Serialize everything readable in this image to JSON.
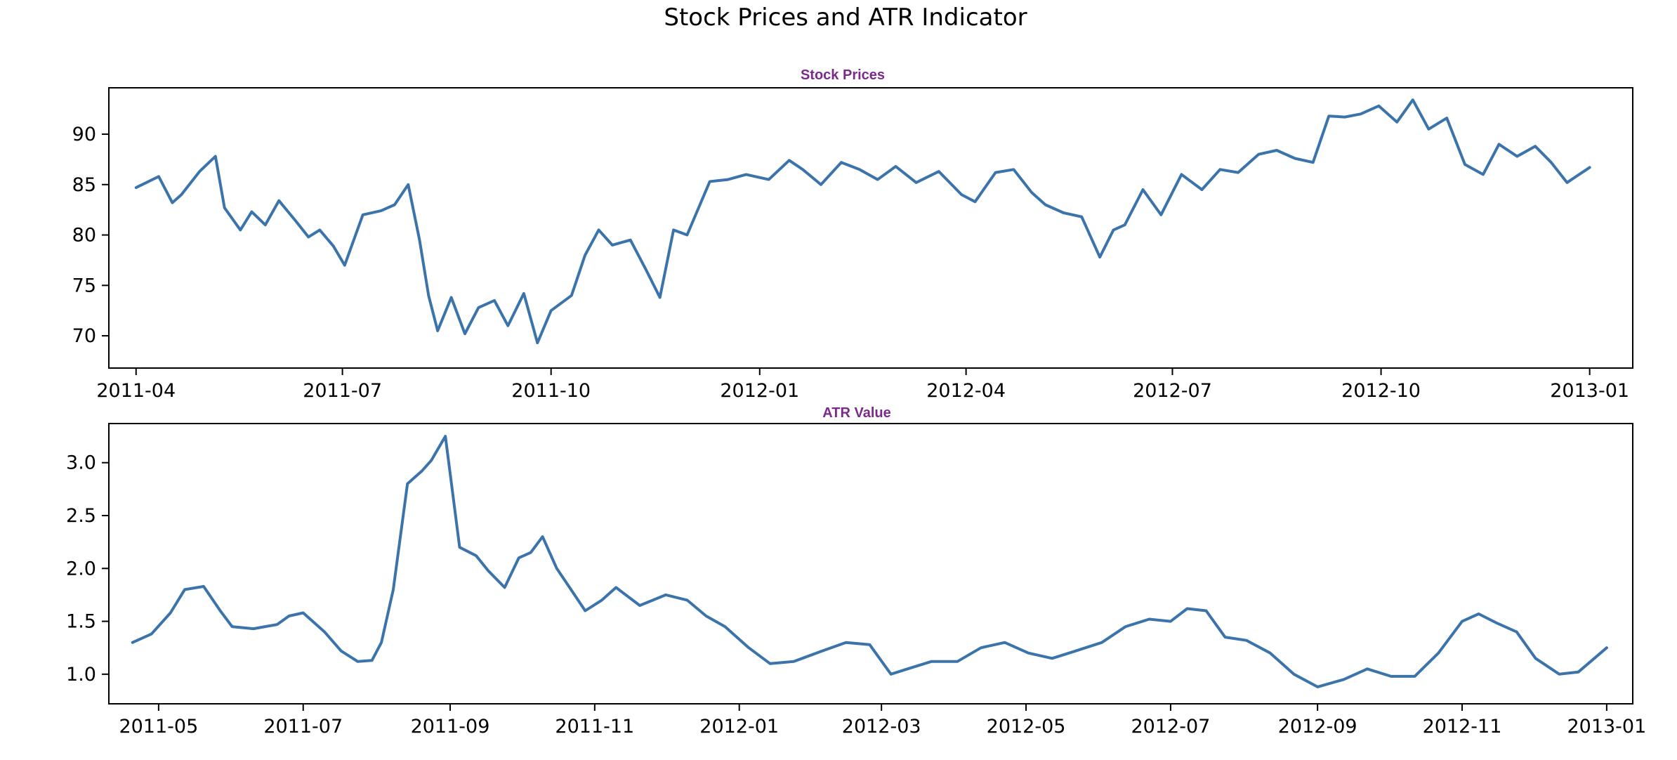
{
  "title": "Stock Prices and ATR Indicator",
  "colors": {
    "line": "#3b73ab",
    "subtitle": "#7b2a8c"
  },
  "chart_data": [
    {
      "type": "line",
      "title": "Stock Prices",
      "xlabel": "",
      "ylabel": "",
      "grid": false,
      "xlim": [
        "2011-03-20",
        "2013-01-20"
      ],
      "ylim": [
        66.8,
        94.6
      ],
      "xticks": [
        "2011-04",
        "2011-07",
        "2011-10",
        "2012-01",
        "2012-04",
        "2012-07",
        "2012-10",
        "2013-01"
      ],
      "yticks": [
        70,
        75,
        80,
        85,
        90
      ],
      "series": [
        {
          "x": [
            "2011-04-01",
            "2011-04-11",
            "2011-04-17",
            "2011-04-21",
            "2011-04-29",
            "2011-05-06",
            "2011-05-10",
            "2011-05-17",
            "2011-05-22",
            "2011-05-28",
            "2011-06-03",
            "2011-06-10",
            "2011-06-16",
            "2011-06-21",
            "2011-06-27",
            "2011-07-02",
            "2011-07-10",
            "2011-07-18",
            "2011-07-24",
            "2011-07-30",
            "2011-08-04",
            "2011-08-08",
            "2011-08-12",
            "2011-08-18",
            "2011-08-24",
            "2011-08-30",
            "2011-09-06",
            "2011-09-12",
            "2011-09-19",
            "2011-09-25",
            "2011-10-01",
            "2011-10-10",
            "2011-10-16",
            "2011-10-22",
            "2011-10-28",
            "2011-11-05",
            "2011-11-12",
            "2011-11-18",
            "2011-11-24",
            "2011-11-30",
            "2011-12-10",
            "2011-12-18",
            "2011-12-26",
            "2012-01-05",
            "2012-01-14",
            "2012-01-20",
            "2012-01-28",
            "2012-02-06",
            "2012-02-14",
            "2012-02-22",
            "2012-03-01",
            "2012-03-10",
            "2012-03-20",
            "2012-03-30",
            "2012-04-05",
            "2012-04-14",
            "2012-04-22",
            "2012-04-30",
            "2012-05-06",
            "2012-05-14",
            "2012-05-22",
            "2012-05-30",
            "2012-06-05",
            "2012-06-10",
            "2012-06-18",
            "2012-06-26",
            "2012-07-05",
            "2012-07-14",
            "2012-07-22",
            "2012-07-30",
            "2012-08-08",
            "2012-08-16",
            "2012-08-24",
            "2012-09-01",
            "2012-09-08",
            "2012-09-15",
            "2012-09-22",
            "2012-09-30",
            "2012-10-08",
            "2012-10-15",
            "2012-10-22",
            "2012-10-30",
            "2012-11-07",
            "2012-11-15",
            "2012-11-22",
            "2012-11-30",
            "2012-12-08",
            "2012-12-15",
            "2012-12-22",
            "2013-01-01"
          ],
          "y": [
            84.7,
            85.8,
            83.2,
            84.0,
            86.3,
            87.8,
            82.7,
            80.5,
            82.3,
            81.0,
            83.4,
            81.5,
            79.8,
            80.5,
            78.9,
            77.0,
            82.0,
            82.4,
            83.0,
            85.0,
            79.5,
            74.0,
            70.5,
            73.8,
            70.2,
            72.8,
            73.5,
            71.0,
            74.2,
            69.3,
            72.5,
            74.0,
            78.0,
            80.5,
            79.0,
            79.5,
            76.5,
            73.8,
            80.5,
            80.0,
            85.3,
            85.5,
            86.0,
            85.5,
            87.4,
            86.5,
            85.0,
            87.2,
            86.5,
            85.5,
            86.8,
            85.2,
            86.3,
            84.0,
            83.3,
            86.2,
            86.5,
            84.2,
            83.0,
            82.2,
            81.8,
            77.8,
            80.5,
            81.0,
            84.5,
            82.0,
            86.0,
            84.5,
            86.5,
            86.2,
            88.0,
            88.4,
            87.6,
            87.2,
            91.8,
            91.7,
            92.0,
            92.8,
            91.2,
            93.4,
            90.5,
            91.6,
            87.0,
            86.0,
            89.0,
            87.8,
            88.8,
            87.2,
            85.2,
            86.7
          ]
        }
      ]
    },
    {
      "type": "line",
      "title": "ATR Value",
      "xlabel": "",
      "ylabel": "",
      "grid": false,
      "xlim": [
        "2011-04-10",
        "2013-01-12"
      ],
      "ylim": [
        0.72,
        3.37
      ],
      "xticks": [
        "2011-05",
        "2011-07",
        "2011-09",
        "2011-11",
        "2012-01",
        "2012-03",
        "2012-05",
        "2012-07",
        "2012-09",
        "2012-11",
        "2013-01"
      ],
      "yticks": [
        1.0,
        1.5,
        2.0,
        2.5,
        3.0
      ],
      "series": [
        {
          "x": [
            "2011-04-20",
            "2011-04-28",
            "2011-05-06",
            "2011-05-12",
            "2011-05-20",
            "2011-05-27",
            "2011-06-01",
            "2011-06-10",
            "2011-06-20",
            "2011-06-25",
            "2011-07-01",
            "2011-07-10",
            "2011-07-17",
            "2011-07-24",
            "2011-07-30",
            "2011-08-03",
            "2011-08-08",
            "2011-08-14",
            "2011-08-20",
            "2011-08-24",
            "2011-08-30",
            "2011-09-05",
            "2011-09-12",
            "2011-09-17",
            "2011-09-24",
            "2011-09-30",
            "2011-10-05",
            "2011-10-10",
            "2011-10-16",
            "2011-10-22",
            "2011-10-28",
            "2011-11-04",
            "2011-11-10",
            "2011-11-20",
            "2011-12-01",
            "2011-12-10",
            "2011-12-18",
            "2011-12-26",
            "2012-01-05",
            "2012-01-14",
            "2012-01-24",
            "2012-02-05",
            "2012-02-15",
            "2012-02-25",
            "2012-03-05",
            "2012-03-12",
            "2012-03-22",
            "2012-04-02",
            "2012-04-12",
            "2012-04-22",
            "2012-05-02",
            "2012-05-12",
            "2012-05-22",
            "2012-06-02",
            "2012-06-12",
            "2012-06-22",
            "2012-07-01",
            "2012-07-08",
            "2012-07-16",
            "2012-07-24",
            "2012-08-02",
            "2012-08-12",
            "2012-08-22",
            "2012-09-01",
            "2012-09-12",
            "2012-09-22",
            "2012-10-02",
            "2012-10-12",
            "2012-10-22",
            "2012-11-01",
            "2012-11-08",
            "2012-11-16",
            "2012-11-24",
            "2012-12-02",
            "2012-12-12",
            "2012-12-20",
            "2013-01-01"
          ],
          "y": [
            1.3,
            1.38,
            1.58,
            1.8,
            1.83,
            1.6,
            1.45,
            1.43,
            1.47,
            1.55,
            1.58,
            1.4,
            1.22,
            1.12,
            1.13,
            1.3,
            1.8,
            2.8,
            2.92,
            3.02,
            3.25,
            2.2,
            2.12,
            1.98,
            1.82,
            2.1,
            2.15,
            2.3,
            2.0,
            1.8,
            1.6,
            1.7,
            1.82,
            1.65,
            1.75,
            1.7,
            1.55,
            1.45,
            1.25,
            1.1,
            1.12,
            1.22,
            1.3,
            1.28,
            1.0,
            1.05,
            1.12,
            1.12,
            1.25,
            1.3,
            1.2,
            1.15,
            1.22,
            1.3,
            1.45,
            1.52,
            1.5,
            1.62,
            1.6,
            1.35,
            1.32,
            1.2,
            1.0,
            0.88,
            0.95,
            1.05,
            0.98,
            0.98,
            1.2,
            1.5,
            1.57,
            1.48,
            1.4,
            1.15,
            1.0,
            1.02,
            1.25
          ]
        }
      ]
    }
  ]
}
